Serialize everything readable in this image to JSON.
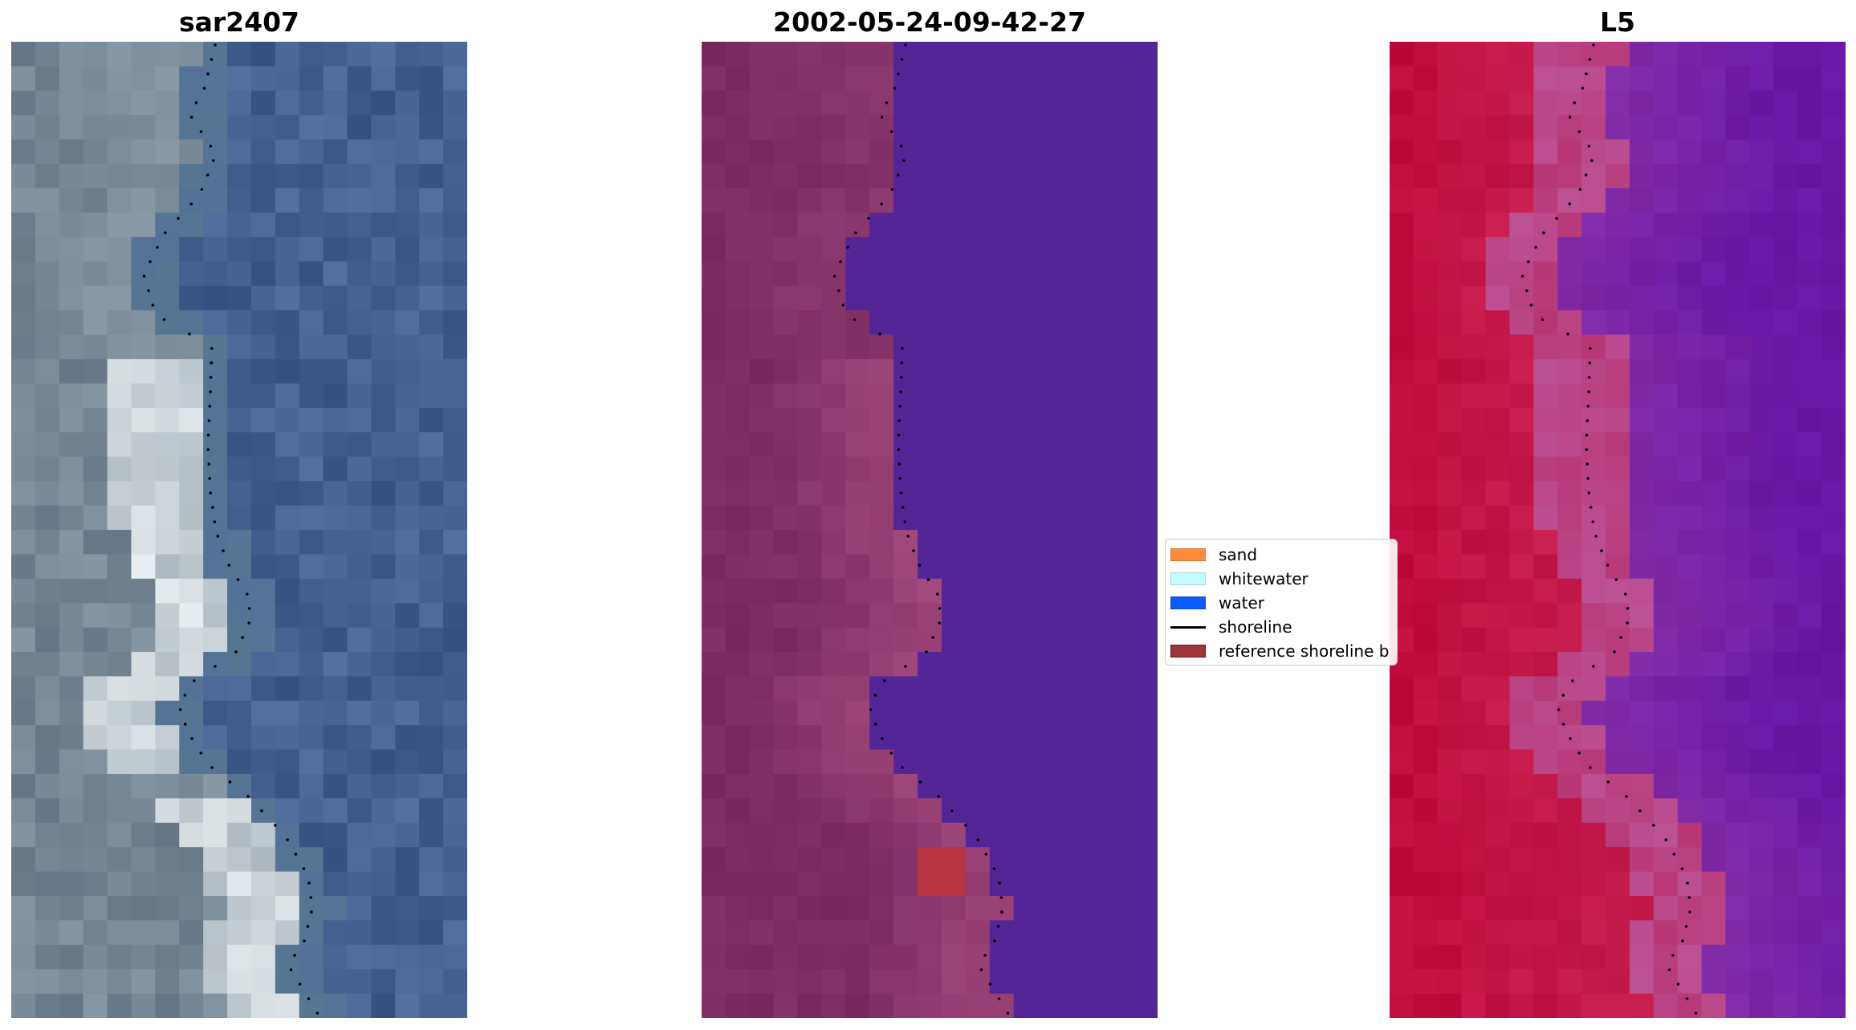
{
  "panels": {
    "image": {
      "title": "sar2407"
    },
    "classification": {
      "title": "2002-05-24-09-42-27"
    },
    "index": {
      "title": "L5"
    }
  },
  "legend": {
    "items": [
      {
        "label": "sand",
        "color": "#ff8c3a",
        "icon": "filled-rect"
      },
      {
        "label": "whitewater",
        "color": "#c8fbff",
        "icon": "filled-rect"
      },
      {
        "label": "water",
        "color": "#0a5cff",
        "icon": "filled-rect"
      },
      {
        "label": "shoreline",
        "color": "#000000",
        "icon": "line"
      },
      {
        "label": "reference shoreline b",
        "color": "#a1343a",
        "icon": "filled-rect"
      }
    ]
  },
  "colors": {
    "rgb_water": "#3e5a8a",
    "rgb_sand": "#6f7f8f",
    "rgb_whitewater": "#e8eef0",
    "class_land": "#7d2d63",
    "class_land_light": "#a54a80",
    "class_water": "#532596",
    "class_reference": "#b83440",
    "index_land": "#c00c3c",
    "index_mid": "#b54a8e",
    "index_water": "#6c1aa6"
  }
}
